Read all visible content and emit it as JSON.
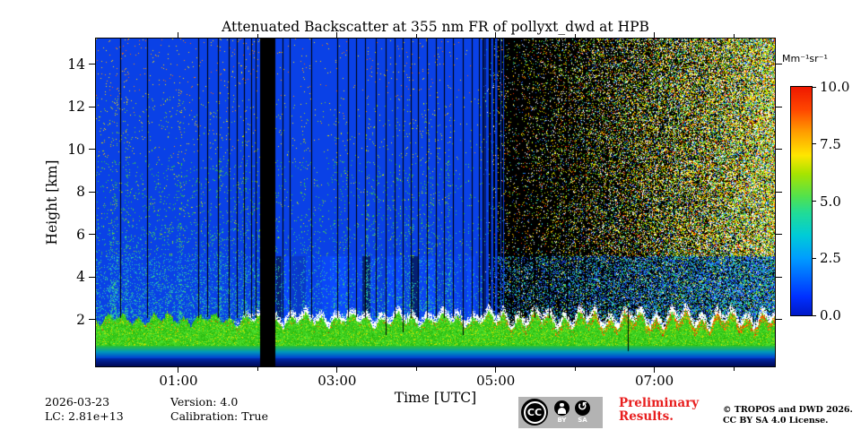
{
  "figure": {
    "background": "#ffffff"
  },
  "chart_data": {
    "type": "heatmap",
    "title": "Attenuated Backscatter at 355 nm FR of pollyxt_dwd at HPB",
    "xlabel": "Time [UTC]",
    "ylabel": "Height [km]",
    "x_axis": {
      "unit": "hours UTC",
      "start_hour": -0.04,
      "end_hour": 8.52
    },
    "y_axis": {
      "unit": "km",
      "min": -0.2,
      "max": 15.2
    },
    "x_ticks": [
      {
        "label": "01:00",
        "hour": 1
      },
      {
        "label": "03:00",
        "hour": 3
      },
      {
        "label": "05:00",
        "hour": 5
      },
      {
        "label": "07:00",
        "hour": 7
      }
    ],
    "x_minor_tick_hours": [
      2,
      4,
      6,
      8
    ],
    "y_ticks": [
      {
        "label": "2",
        "km": 2
      },
      {
        "label": "4",
        "km": 4
      },
      {
        "label": "6",
        "km": 6
      },
      {
        "label": "8",
        "km": 8
      },
      {
        "label": "10",
        "km": 10
      },
      {
        "label": "12",
        "km": 12
      },
      {
        "label": "14",
        "km": 14
      }
    ],
    "colorbar": {
      "label": "Mm⁻¹sr⁻¹",
      "range": [
        0,
        10
      ],
      "colormap": "jet",
      "ticks": [
        {
          "label": "0.0",
          "value": 0
        },
        {
          "label": "2.5",
          "value": 2.5
        },
        {
          "label": "5.0",
          "value": 5
        },
        {
          "label": "7.5",
          "value": 7.5
        },
        {
          "label": "10.0",
          "value": 10
        }
      ],
      "gradient": [
        {
          "pos": 0.0,
          "color": "#0019c8"
        },
        {
          "pos": 0.08,
          "color": "#0030ff"
        },
        {
          "pos": 0.25,
          "color": "#009dff"
        },
        {
          "pos": 0.35,
          "color": "#00ccd8"
        },
        {
          "pos": 0.45,
          "color": "#22dc96"
        },
        {
          "pos": 0.52,
          "color": "#52e24e"
        },
        {
          "pos": 0.62,
          "color": "#a8e400"
        },
        {
          "pos": 0.7,
          "color": "#ffe600"
        },
        {
          "pos": 0.8,
          "color": "#ffa000"
        },
        {
          "pos": 0.9,
          "color": "#ff4700"
        },
        {
          "pos": 1.0,
          "color": "#f01800"
        }
      ]
    },
    "features": [
      "Aerosol boundary layer below ~2 km with backscatter ~2-5 Mm-1sr-1 (green/yellow band)",
      "White liquid cloud tops near 2 km from ~01:40 UTC onward, orange-red high-backscatter patches after ~05:30",
      "Full-column instrument data gap (black band) ~02:02-02:13 UTC",
      "Numerous thin vertical no-data columns throughout the record",
      "Clean free troposphere (blue, <0.5 Mm-1sr-1) before ~04:55 UTC",
      "Daylight noise speckle after ~04:55 UTC, density increasing toward 08:30 and with altitude",
      "Dark near-surface overlap region below ~0.2 km"
    ],
    "render": {
      "x_start_hour": -0.04,
      "x_end_hour": 8.52,
      "y_min_km": -0.2,
      "y_max_km": 15.2,
      "bg_blue": "#0a41e6",
      "navy": "#000f70",
      "gap_band_hours": [
        2.03,
        2.22
      ],
      "noise_start_hour": 4.86,
      "cluster_hours": [
        4.83,
        5.12
      ],
      "layer_top_km": 2.05,
      "white_start_hour": 1.62,
      "warm_start_hour": 4.3,
      "five_km": 5.0,
      "grad_top_km": 0.8,
      "navy_km": 0.2,
      "palettes": {
        "warm": [
          [
            "#ff9800",
            3
          ],
          [
            "#ffd200",
            3
          ],
          [
            "#ff6000",
            2
          ],
          [
            "#ffe800",
            2
          ]
        ],
        "mid": [
          [
            "#ffe000",
            3
          ],
          [
            "#b4dc00",
            3
          ],
          [
            "#6ecc28",
            2
          ],
          [
            "#ff9800",
            1
          ]
        ],
        "green": [
          [
            "#46d23c",
            4
          ],
          [
            "#2fd42f",
            3
          ],
          [
            "#96dc28",
            2
          ],
          [
            "#ffe000",
            1
          ]
        ],
        "green_cyan": [
          [
            "#3cd464",
            3
          ],
          [
            "#28cd9b",
            3
          ],
          [
            "#50d43c",
            2
          ],
          [
            "#b4dc00",
            1
          ]
        ],
        "cyan": [
          [
            "#26c8a8",
            4
          ],
          [
            "#1ec0cc",
            3
          ],
          [
            "#3cd27c",
            2
          ],
          [
            "#2aa0dc",
            2
          ],
          [
            "#52d448",
            1
          ]
        ],
        "right_high": [
          [
            "#ffffff",
            22
          ],
          [
            "#ffe400",
            18
          ],
          [
            "#aadc00",
            14
          ],
          [
            "#46d22d",
            12
          ],
          [
            "#ff8c00",
            8
          ],
          [
            "#ff3000",
            8
          ],
          [
            "#28c8c8",
            9
          ],
          [
            "#2864ff",
            9
          ]
        ],
        "right_low": [
          [
            "#2050ff",
            32
          ],
          [
            "#28a0e0",
            20
          ],
          [
            "#20c8c8",
            15
          ],
          [
            "#30d080",
            10
          ],
          [
            "#ffffff",
            6
          ],
          [
            "#ffe400",
            6
          ],
          [
            "#3cdc3c",
            8
          ],
          [
            "#0828a0",
            10
          ]
        ]
      },
      "lines": [
        [
          0.27,
          2.1
        ],
        [
          0.6,
          2.1
        ],
        [
          1.25,
          2.1
        ],
        [
          1.36,
          2.15
        ],
        [
          1.5,
          2.1
        ],
        [
          1.63,
          2.1
        ],
        [
          1.74,
          2.1
        ],
        [
          1.83,
          2.2
        ],
        [
          1.92,
          2.1
        ],
        [
          1.97,
          2.1
        ],
        [
          2.31,
          2.1
        ],
        [
          2.4,
          2.1
        ],
        [
          2.67,
          2.1
        ],
        [
          3.0,
          2.1
        ],
        [
          3.14,
          2.1
        ],
        [
          3.24,
          2.15
        ],
        [
          3.35,
          2.1
        ],
        [
          3.49,
          2.1
        ],
        [
          3.61,
          1.3
        ],
        [
          3.72,
          2.1
        ],
        [
          3.83,
          1.4
        ],
        [
          3.93,
          2.1
        ],
        [
          4.02,
          2.1
        ],
        [
          4.13,
          2.1
        ],
        [
          4.24,
          2.1
        ],
        [
          4.35,
          2.1
        ],
        [
          4.46,
          2.1
        ],
        [
          4.59,
          1.3
        ],
        [
          4.7,
          2.1
        ],
        [
          4.79,
          2.1
        ],
        [
          4.83,
          2.1
        ],
        [
          5.2,
          2.1
        ],
        [
          5.31,
          2.1
        ],
        [
          5.49,
          2.1
        ],
        [
          5.67,
          2.1
        ],
        [
          5.9,
          2.1
        ],
        [
          6.12,
          2.1
        ]
      ],
      "deep_lines": [
        [
          6.66,
          2.6,
          0.55
        ]
      ]
    }
  },
  "footer": {
    "date": "2026-03-23",
    "lc": "LC: 2.81e+13",
    "version": "Version: 4.0",
    "calibration": "Calibration: True",
    "license_badge": {
      "cc": "CC",
      "by": "BY",
      "sa": "SA",
      "sa_glyph": "↺"
    },
    "preliminary_line1": "Preliminary",
    "preliminary_line2": "Results.",
    "preliminary_color": "#e81e1e",
    "copyright_line1": "© TROPOS and DWD 2026.",
    "copyright_line2": "CC BY SA 4.0 License."
  }
}
